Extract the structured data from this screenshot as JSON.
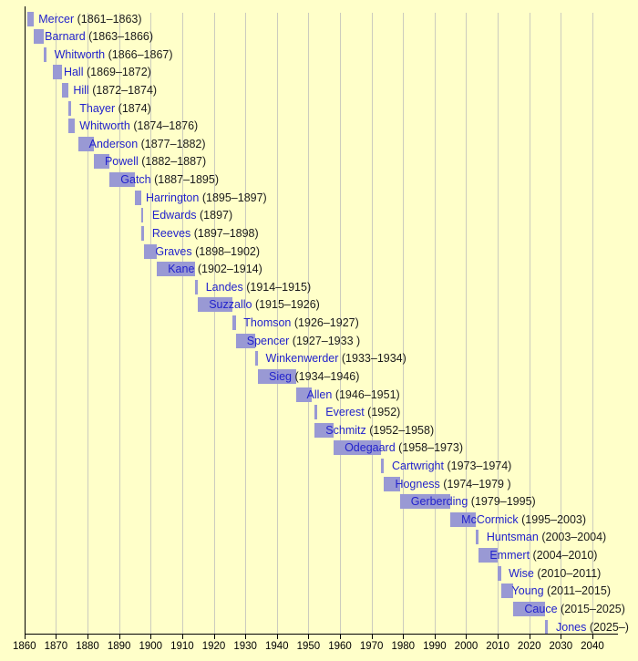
{
  "colors": {
    "background": "#FFFFC9",
    "bar": "#9999D4",
    "name_text": "#2222CC",
    "date_text": "#1A1A1A",
    "grid_line": "#CCCCBE",
    "axis_line": "#000000",
    "tick_label": "#000000"
  },
  "chart_data": {
    "type": "bar",
    "variant": "horizontal-timeline-gantt",
    "title": "",
    "xlabel": "",
    "ylabel": "",
    "x_axis": {
      "min": 1860,
      "max": 2048,
      "tick_interval": 10,
      "tick_values": [
        1860,
        1870,
        1880,
        1890,
        1900,
        1910,
        1920,
        1930,
        1940,
        1950,
        1960,
        1970,
        1980,
        1990,
        2000,
        2010,
        2020,
        2030,
        2040
      ],
      "tick_labels": [
        "1860",
        "1870",
        "1880",
        "1890",
        "1900",
        "1910",
        "1920",
        "1930",
        "1940",
        "1950",
        "1960",
        "1970",
        "1980",
        "1990",
        "2000",
        "2010",
        "2020",
        "2030",
        "2040"
      ]
    },
    "grid": true,
    "legend": false,
    "presidents": [
      {
        "name": "Mercer",
        "dates": "(1861–1863)",
        "start": 1861,
        "end": 1863
      },
      {
        "name": "Barnard",
        "dates": "(1863–1866)",
        "start": 1863,
        "end": 1866
      },
      {
        "name": "Whitworth",
        "dates": "(1866–1867)",
        "start": 1866,
        "end": 1867
      },
      {
        "name": "Hall",
        "dates": "(1869–1872)",
        "start": 1869,
        "end": 1872
      },
      {
        "name": "Hill",
        "dates": "(1872–1874)",
        "start": 1872,
        "end": 1874
      },
      {
        "name": "Thayer",
        "dates": "(1874)",
        "start": 1874,
        "end": 1874
      },
      {
        "name": "Whitworth",
        "dates": "(1874–1876)",
        "start": 1874,
        "end": 1876
      },
      {
        "name": "Anderson",
        "dates": "(1877–1882)",
        "start": 1877,
        "end": 1882
      },
      {
        "name": "Powell",
        "dates": "(1882–1887)",
        "start": 1882,
        "end": 1887
      },
      {
        "name": "Gatch",
        "dates": "(1887–1895)",
        "start": 1887,
        "end": 1895
      },
      {
        "name": "Harrington",
        "dates": "(1895–1897)",
        "start": 1895,
        "end": 1897
      },
      {
        "name": "Edwards",
        "dates": "(1897)",
        "start": 1897,
        "end": 1897
      },
      {
        "name": "Reeves",
        "dates": "(1897–1898)",
        "start": 1897,
        "end": 1898
      },
      {
        "name": "Graves",
        "dates": "(1898–1902)",
        "start": 1898,
        "end": 1902
      },
      {
        "name": "Kane",
        "dates": "(1902–1914)",
        "start": 1902,
        "end": 1914
      },
      {
        "name": "Landes",
        "dates": "(1914–1915)",
        "start": 1914,
        "end": 1915
      },
      {
        "name": "Suzzallo",
        "dates": "(1915–1926)",
        "start": 1915,
        "end": 1926
      },
      {
        "name": "Thomson",
        "dates": "(1926–1927)",
        "start": 1926,
        "end": 1927
      },
      {
        "name": "Spencer",
        "dates": "(1927–1933 )",
        "start": 1927,
        "end": 1933
      },
      {
        "name": "Winkenwerder",
        "dates": "(1933–1934)",
        "start": 1933,
        "end": 1934
      },
      {
        "name": "Sieg",
        "dates": "(1934–1946)",
        "start": 1934,
        "end": 1946
      },
      {
        "name": "Allen",
        "dates": "(1946–1951)",
        "start": 1946,
        "end": 1951
      },
      {
        "name": "Everest",
        "dates": "(1952)",
        "start": 1952,
        "end": 1952
      },
      {
        "name": "Schmitz",
        "dates": "(1952–1958)",
        "start": 1952,
        "end": 1958
      },
      {
        "name": "Odegaard",
        "dates": "(1958–1973)",
        "start": 1958,
        "end": 1973
      },
      {
        "name": "Cartwright",
        "dates": "(1973–1974)",
        "start": 1973,
        "end": 1974
      },
      {
        "name": "Hogness",
        "dates": "(1974–1979 )",
        "start": 1974,
        "end": 1979
      },
      {
        "name": "Gerberding",
        "dates": "(1979–1995)",
        "start": 1979,
        "end": 1995
      },
      {
        "name": "McCormick",
        "dates": "(1995–2003)",
        "start": 1995,
        "end": 2003
      },
      {
        "name": "Huntsman",
        "dates": "(2003–2004)",
        "start": 2003,
        "end": 2004
      },
      {
        "name": "Emmert",
        "dates": "(2004–2010)",
        "start": 2004,
        "end": 2010
      },
      {
        "name": "Wise",
        "dates": "(2010–2011)",
        "start": 2010,
        "end": 2011
      },
      {
        "name": "Young",
        "dates": "(2011–2015)",
        "start": 2011,
        "end": 2015
      },
      {
        "name": "Cauce",
        "dates": "(2015–2025)",
        "start": 2015,
        "end": 2025
      },
      {
        "name": "Jones",
        "dates": "(2025–)",
        "start": 2025,
        "end": null
      }
    ]
  }
}
